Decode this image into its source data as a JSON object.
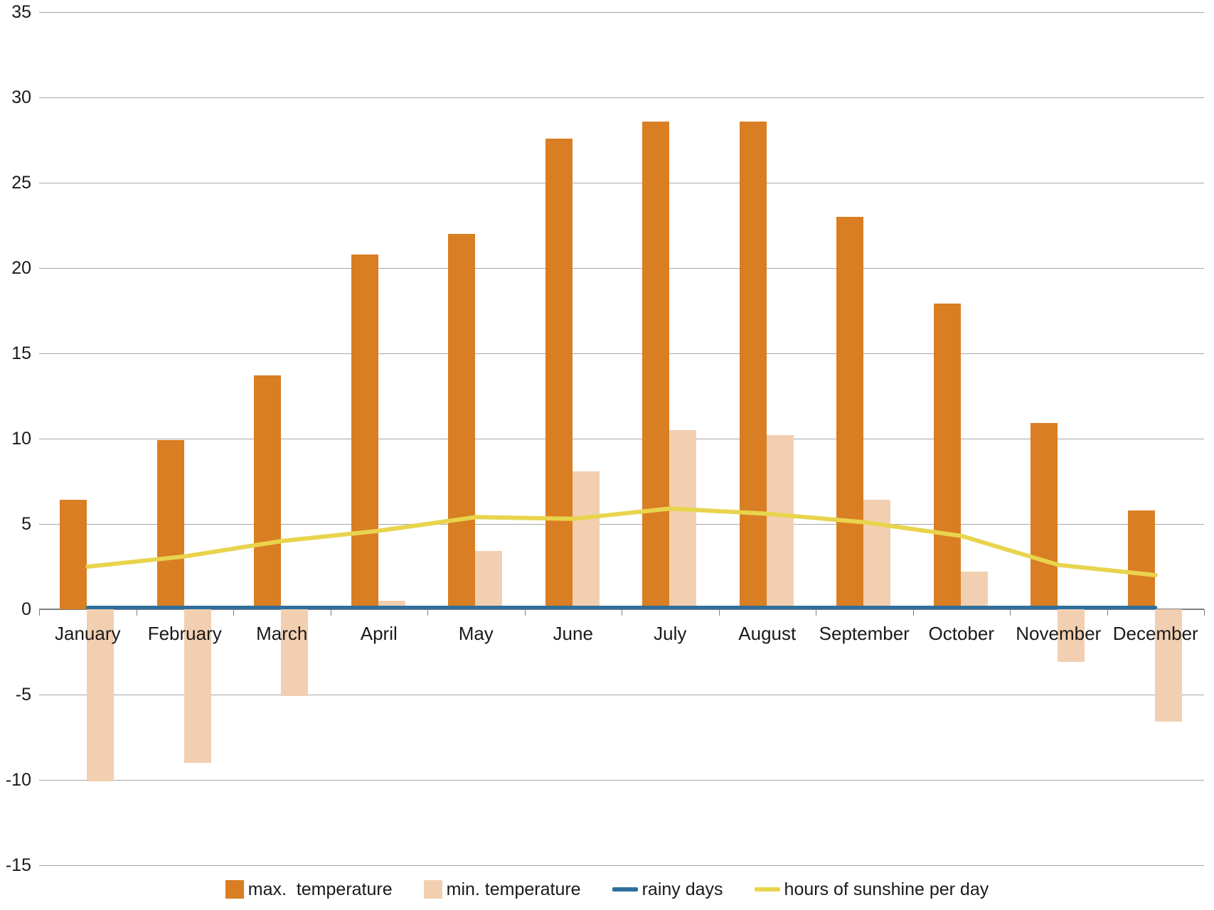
{
  "chart_data": {
    "type": "combo-bar-line",
    "title": "",
    "categories": [
      "January",
      "February",
      "March",
      "April",
      "May",
      "June",
      "July",
      "August",
      "September",
      "October",
      "November",
      "December"
    ],
    "series": [
      {
        "name": "max.  temperature",
        "type": "bar",
        "color": "#d97e23",
        "values": [
          6.4,
          9.9,
          13.7,
          20.8,
          22.0,
          27.6,
          28.6,
          28.6,
          23.0,
          17.9,
          10.9,
          5.8
        ]
      },
      {
        "name": "min. temperature",
        "type": "bar",
        "color": "#f2cfb0",
        "values": [
          -10.1,
          -9.0,
          -5.1,
          0.5,
          3.4,
          8.1,
          10.5,
          10.2,
          6.4,
          2.2,
          -3.1,
          -6.6
        ]
      },
      {
        "name": "rainy days",
        "type": "line",
        "color": "#2e6f9e",
        "values": [
          0,
          0,
          0,
          0,
          0,
          0,
          0,
          0,
          0,
          0,
          0,
          0
        ]
      },
      {
        "name": "hours of sunshine per day",
        "type": "line",
        "color": "#e8d44d",
        "values": [
          2.5,
          3.1,
          4.0,
          4.6,
          5.4,
          5.3,
          5.9,
          5.6,
          5.1,
          4.3,
          2.6,
          2.0
        ]
      }
    ],
    "ylim": [
      -15,
      35
    ],
    "ytick_step": 5,
    "grid": true,
    "legend_position": "bottom",
    "gridline_color": "#a6a6a6",
    "axis_color": "#7f7f7f"
  },
  "axis": {
    "yticks": [
      "35",
      "30",
      "25",
      "20",
      "15",
      "10",
      "5",
      "0",
      "-5",
      "-10",
      "-15"
    ]
  }
}
